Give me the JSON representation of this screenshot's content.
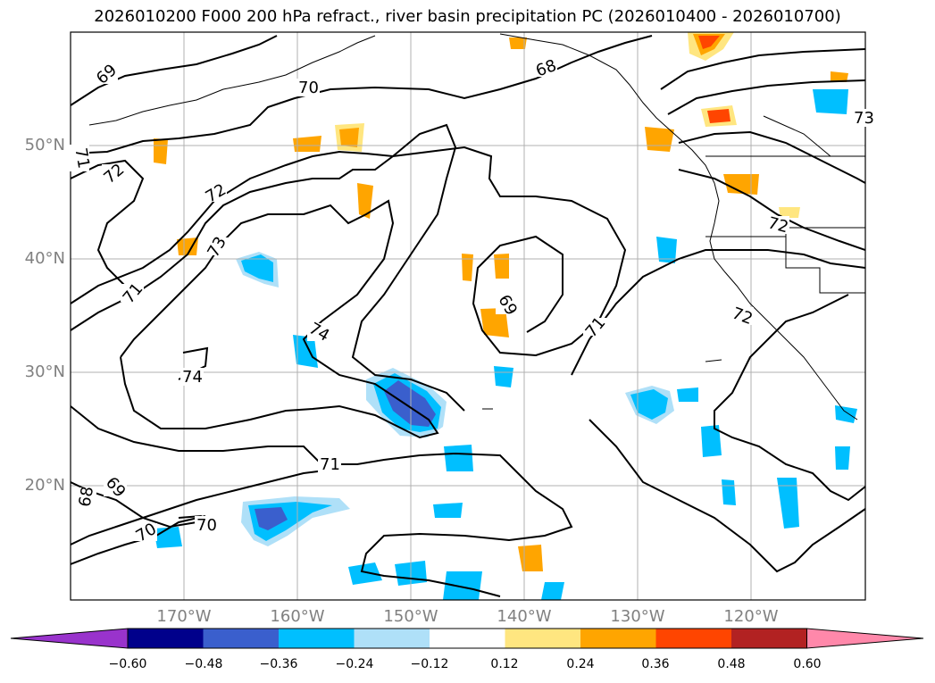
{
  "title": "2026010200 F000 200 hPa refract., river basin precipitation PC (2026010400 - 2026010700)",
  "lat_labels": [
    "50°N",
    "40°N",
    "30°N",
    "20°N"
  ],
  "lon_labels": [
    "170°W",
    "160°W",
    "150°W",
    "140°W",
    "130°W",
    "120°W"
  ],
  "contour_labels": [
    "69",
    "70",
    "68",
    "71",
    "72",
    "72",
    "73",
    "74",
    "74",
    "69",
    "71",
    "72",
    "72",
    "71",
    "71",
    "69",
    "68",
    "70",
    "70",
    "73"
  ],
  "colorbar": {
    "ticks": [
      "−0.60",
      "−0.48",
      "−0.36",
      "−0.24",
      "−0.12",
      "0.12",
      "0.24",
      "0.36",
      "0.48",
      "0.60"
    ],
    "colors": [
      "#9933cc",
      "#00008b",
      "#3a5fcd",
      "#00bfff",
      "#afe0f8",
      "#ffffff",
      "#ffe680",
      "#ffa500",
      "#ff4500",
      "#b22222",
      "#ff88aa"
    ]
  }
}
